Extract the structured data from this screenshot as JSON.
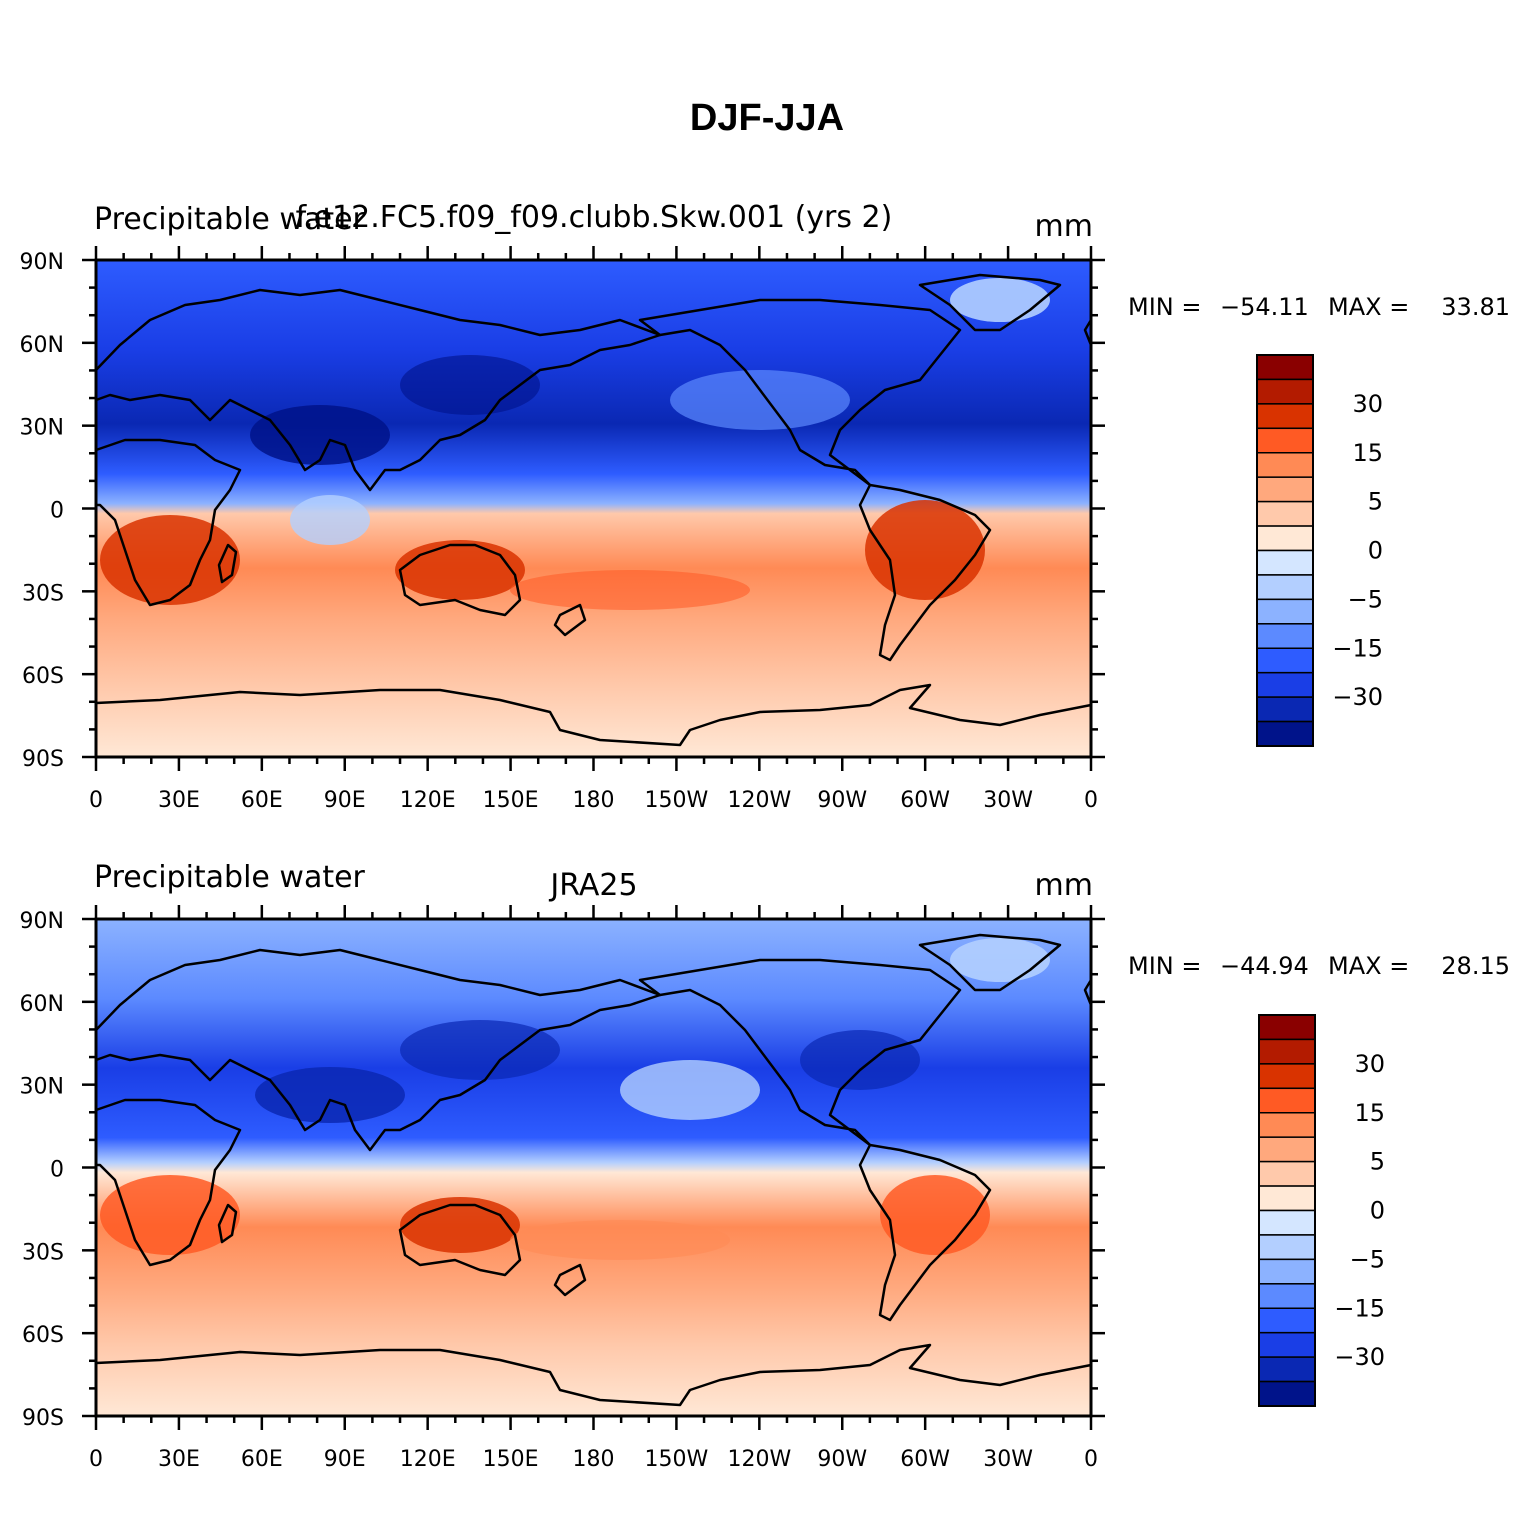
{
  "figure_title": "DJF-JJA",
  "panels": [
    {
      "left_title": "Precipitable water",
      "center_title": "f.e12.FC5.f09_f09.clubb.Skw.001 (yrs 2)",
      "units": "mm",
      "min_label": "MIN = ",
      "min_value": "-54.11",
      "max_label": "MAX = ",
      "max_value": "33.81"
    },
    {
      "left_title": "Precipitable water",
      "center_title": "JRA25",
      "units": "mm",
      "min_label": "MIN = ",
      "min_value": "-44.94",
      "max_label": "MAX = ",
      "max_value": "28.15"
    }
  ],
  "axes": {
    "lon_ticks": [
      "0",
      "30E",
      "60E",
      "90E",
      "120E",
      "150E",
      "180",
      "150W",
      "120W",
      "90W",
      "60W",
      "30W",
      "0"
    ],
    "lat_ticks": [
      "90N",
      "60N",
      "30N",
      "0",
      "30S",
      "60S",
      "90S"
    ]
  },
  "colorbar": {
    "labels": [
      "30",
      "15",
      "5",
      "0",
      "-5",
      "-15",
      "-30"
    ],
    "colors": [
      "#8a0000",
      "#b31b00",
      "#d93300",
      "#ff5a24",
      "#ff8a55",
      "#ffa87d",
      "#ffc9ab",
      "#ffe8d6",
      "#d4e6ff",
      "#b3cfff",
      "#8cb2ff",
      "#5c8aff",
      "#2e5cff",
      "#1a3ee6",
      "#0a28b3",
      "#00138a"
    ]
  },
  "chart_data": {
    "type": "heatmap",
    "projection": "cylindrical-equidistant",
    "xlim": [
      0,
      360
    ],
    "ylim": [
      -90,
      90
    ],
    "panels": [
      {
        "title": "f.e12.FC5.f09_f09.clubb.Skw.001 (yrs 2)",
        "variable": "Precipitable water",
        "units": "mm",
        "min": -54.11,
        "max": 33.81
      },
      {
        "title": "JRA25",
        "variable": "Precipitable water",
        "units": "mm",
        "min": -44.94,
        "max": 28.15
      }
    ],
    "contour_levels": [
      -30,
      -15,
      -5,
      0,
      5,
      15,
      30
    ]
  }
}
